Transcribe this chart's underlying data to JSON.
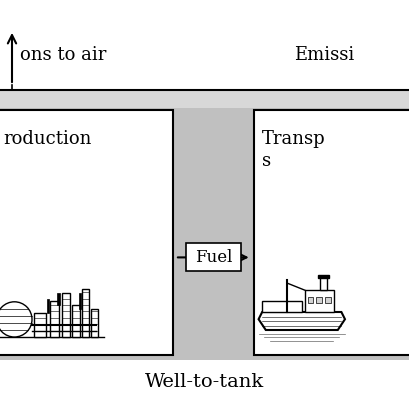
{
  "bg_color": "#ffffff",
  "gray_color": "#c0c0c0",
  "box_color": "#ffffff",
  "label_emissions_left": "ons to air",
  "label_emissions_right": "Emissi",
  "label_wtt": "Well-to-tank",
  "label_production": "roduction",
  "label_transport": "Transp",
  "label_transport2": "s",
  "label_fuel": "Fuel",
  "figw": 4.09,
  "figh": 4.09,
  "dpi": 100
}
